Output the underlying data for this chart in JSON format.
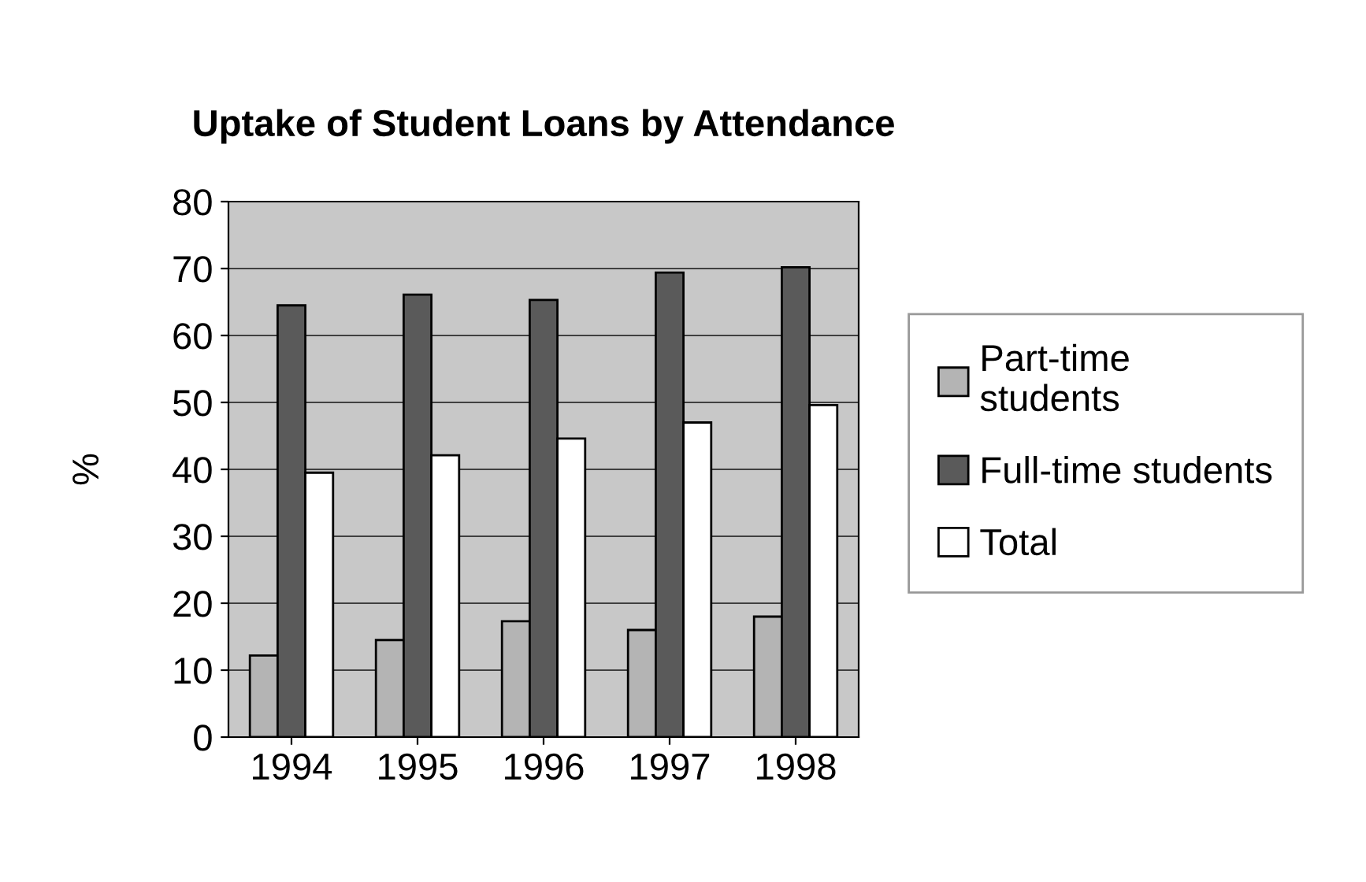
{
  "chart_data": {
    "type": "bar",
    "title": "Uptake of Student Loans by Attendance",
    "ylabel": "%",
    "categories": [
      "1994",
      "1995",
      "1996",
      "1997",
      "1998"
    ],
    "series": [
      {
        "name": "Part-time\nstudents",
        "color": "#b4b4b4",
        "values": [
          12.2,
          14.5,
          17.3,
          16.0,
          18.0
        ]
      },
      {
        "name": "Full-time students",
        "color": "#5a5a5a",
        "values": [
          64.5,
          66.1,
          65.3,
          69.4,
          70.2
        ]
      },
      {
        "name": "Total",
        "color": "#ffffff",
        "values": [
          39.5,
          42.1,
          44.6,
          47.0,
          49.6
        ]
      }
    ],
    "ylim": [
      0,
      80
    ],
    "yticks": [
      0,
      10,
      20,
      30,
      40,
      50,
      60,
      70,
      80
    ],
    "grid": "y",
    "legend": "right"
  }
}
